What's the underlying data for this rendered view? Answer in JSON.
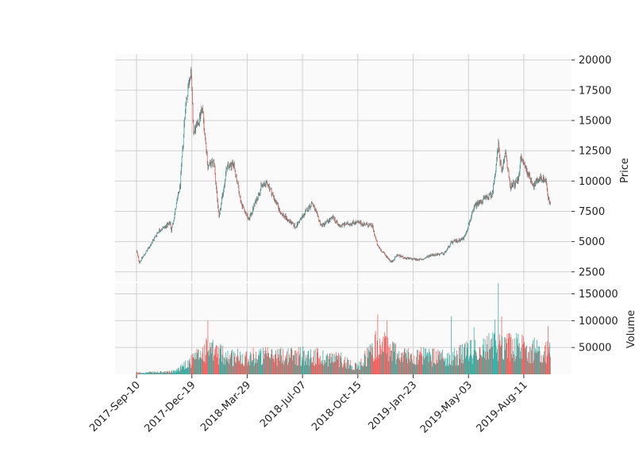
{
  "chart_data": {
    "type": "candlestick",
    "title": "",
    "colors": {
      "up": "#26a69a",
      "down": "#ef5350",
      "panel_bg": "#fafafa",
      "grid": "#d0d0d0"
    },
    "price_panel": {
      "ylabel": "Price",
      "ylim": [
        1700,
        20500
      ],
      "yticks": [
        2500,
        5000,
        7500,
        10000,
        12500,
        15000,
        17500,
        20000
      ]
    },
    "volume_panel": {
      "ylabel": "Volume",
      "ylim": [
        0,
        170000
      ],
      "yticks": [
        50000,
        100000,
        150000
      ],
      "ytick_labels": [
        "50000",
        "100000",
        "150000"
      ]
    },
    "xticks": [
      "2017-Sep-10",
      "2017-Dec-19",
      "2018-Mar-29",
      "2018-Jul-07",
      "2018-Oct-15",
      "2019-Jan-23",
      "2019-May-03",
      "2019-Aug-11"
    ],
    "grid": true,
    "price_close_keypoints": [
      [
        "2017-Sep-10",
        4200
      ],
      [
        "2017-Sep-15",
        3300
      ],
      [
        "2017-Oct-01",
        4400
      ],
      [
        "2017-Oct-20",
        5900
      ],
      [
        "2017-Nov-10",
        6500
      ],
      [
        "2017-Nov-12",
        5900
      ],
      [
        "2017-Nov-28",
        9700
      ],
      [
        "2017-Dec-07",
        16000
      ],
      [
        "2017-Dec-17",
        19300
      ],
      [
        "2017-Dec-22",
        14000
      ],
      [
        "2017-Dec-28",
        14500
      ],
      [
        "2018-Jan-07",
        16000
      ],
      [
        "2018-Jan-17",
        11200
      ],
      [
        "2018-Jan-28",
        11600
      ],
      [
        "2018-Feb-06",
        6900
      ],
      [
        "2018-Feb-20",
        11100
      ],
      [
        "2018-Mar-05",
        11400
      ],
      [
        "2018-Mar-18",
        8200
      ],
      [
        "2018-Apr-01",
        6800
      ],
      [
        "2018-Apr-24",
        9600
      ],
      [
        "2018-May-05",
        9800
      ],
      [
        "2018-May-28",
        7400
      ],
      [
        "2018-Jun-24",
        6200
      ],
      [
        "2018-Jul-24",
        8200
      ],
      [
        "2018-Aug-10",
        6300
      ],
      [
        "2018-Sep-01",
        7000
      ],
      [
        "2018-Sep-10",
        6300
      ],
      [
        "2018-Oct-10",
        6600
      ],
      [
        "2018-Nov-10",
        6300
      ],
      [
        "2018-Nov-20",
        4600
      ],
      [
        "2018-Dec-15",
        3300
      ],
      [
        "2018-Dec-25",
        3900
      ],
      [
        "2019-Jan-10",
        3600
      ],
      [
        "2019-Feb-08",
        3500
      ],
      [
        "2019-Feb-24",
        3900
      ],
      [
        "2019-Mar-20",
        4000
      ],
      [
        "2019-Apr-02",
        4900
      ],
      [
        "2019-Apr-25",
        5300
      ],
      [
        "2019-May-15",
        8000
      ],
      [
        "2019-May-31",
        8500
      ],
      [
        "2019-Jun-15",
        8900
      ],
      [
        "2019-Jun-26",
        12900
      ],
      [
        "2019-Jul-02",
        10600
      ],
      [
        "2019-Jul-09",
        12500
      ],
      [
        "2019-Jul-17",
        9500
      ],
      [
        "2019-Jul-31",
        10000
      ],
      [
        "2019-Aug-06",
        11900
      ],
      [
        "2019-Aug-29",
        9600
      ],
      [
        "2019-Sep-10",
        10300
      ],
      [
        "2019-Sep-20",
        10100
      ],
      [
        "2019-Sep-24",
        8500
      ],
      [
        "2019-Sep-28",
        8100
      ]
    ],
    "volume_keypoints": [
      [
        "2017-Sep-10",
        3000
      ],
      [
        "2017-Nov-01",
        4000
      ],
      [
        "2017-Nov-20",
        6000
      ],
      [
        "2017-Dec-01",
        15000
      ],
      [
        "2017-Dec-19",
        25000
      ],
      [
        "2018-Jan-15",
        45000
      ],
      [
        "2018-Mar-01",
        32000
      ],
      [
        "2018-Jul-07",
        35000
      ],
      [
        "2018-Sep-15",
        28000
      ],
      [
        "2018-Oct-15",
        12000
      ],
      [
        "2018-Nov-20",
        60000
      ],
      [
        "2019-Jan-01",
        35000
      ],
      [
        "2019-Apr-01",
        30000
      ],
      [
        "2019-May-15",
        45000
      ],
      [
        "2019-Jul-01",
        55000
      ],
      [
        "2019-Sep-28",
        40000
      ]
    ],
    "volume_peaks": [
      [
        "2018-Jan-17",
        100000
      ],
      [
        "2018-Nov-20",
        112000
      ],
      [
        "2018-Dec-07",
        100000
      ],
      [
        "2019-Apr-02",
        108000
      ],
      [
        "2019-May-13",
        88000
      ],
      [
        "2019-Jun-20",
        102000
      ],
      [
        "2019-Jun-26",
        170000
      ],
      [
        "2019-Jul-02",
        108000
      ],
      [
        "2019-Sep-24",
        90000
      ]
    ]
  }
}
